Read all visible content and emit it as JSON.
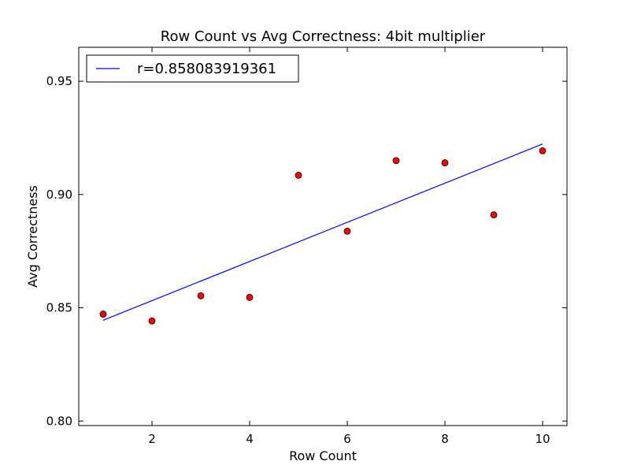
{
  "chart_data": {
    "type": "scatter",
    "title": "Row Count vs Avg Correctness: 4bit multiplier",
    "xlabel": "Row Count",
    "ylabel": "Avg Correctness",
    "xlim": [
      0.5,
      10.5
    ],
    "ylim": [
      0.798,
      0.965
    ],
    "x_ticks": [
      2,
      4,
      6,
      8,
      10
    ],
    "x_tick_labels": [
      "2",
      "4",
      "6",
      "8",
      "10"
    ],
    "y_ticks": [
      0.8,
      0.85,
      0.9,
      0.95
    ],
    "y_tick_labels": [
      "0.80",
      "0.85",
      "0.90",
      "0.95"
    ],
    "grid": false,
    "legend_position": "top-left",
    "series": [
      {
        "name": "r=0.858083919361",
        "kind": "line",
        "color": "#0000ff",
        "x": [
          1,
          10
        ],
        "y": [
          0.8445,
          0.9223
        ]
      },
      {
        "kind": "scatter",
        "color": "#ff0000",
        "x": [
          1,
          2,
          3,
          4,
          5,
          6,
          7,
          8,
          9,
          10
        ],
        "y": [
          0.8472,
          0.8442,
          0.8553,
          0.8546,
          0.9085,
          0.8838,
          0.915,
          0.914,
          0.891,
          0.9193
        ]
      }
    ]
  }
}
